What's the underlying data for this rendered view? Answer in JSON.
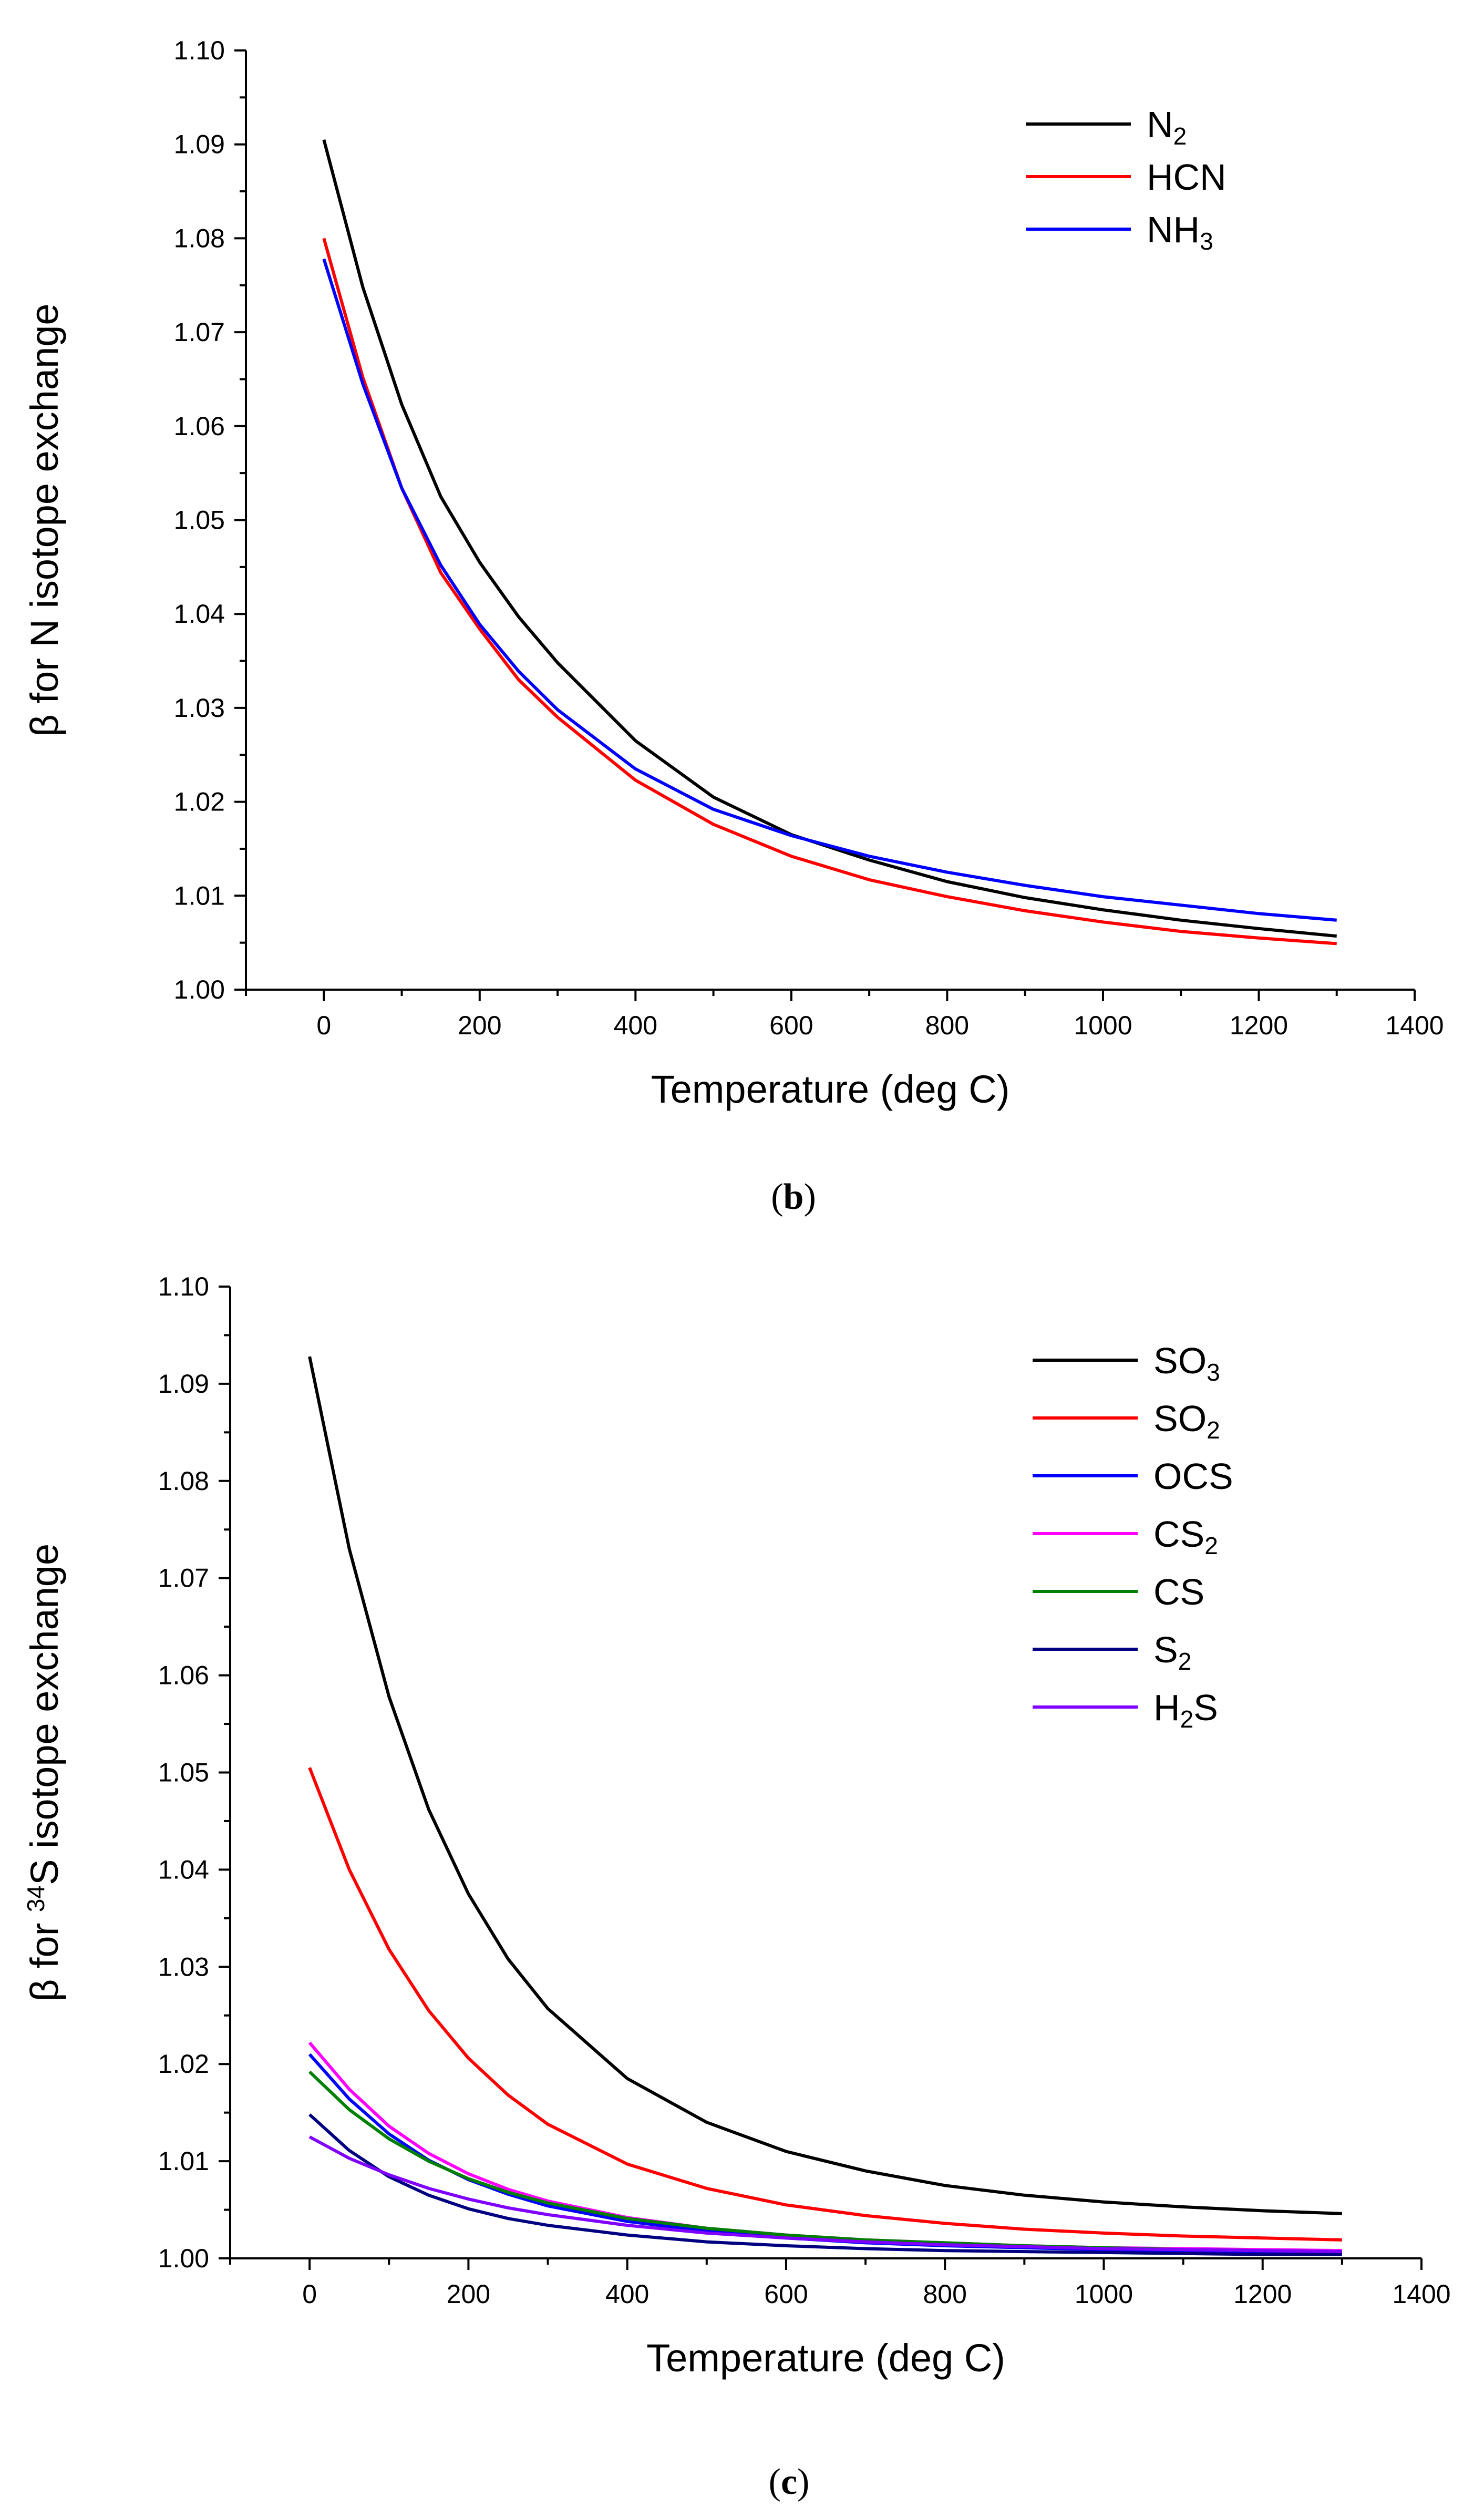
{
  "chart_data": [
    {
      "type": "line",
      "panel_label": "b",
      "caption_open": "(",
      "caption_close": ")",
      "xlabel": "Temperature (deg C)",
      "ylabel": "β for N isotope exchange",
      "xlim": [
        -100,
        1400
      ],
      "ylim": [
        1.0,
        1.1
      ],
      "x_ticks": [
        0,
        200,
        400,
        600,
        800,
        1000,
        1200,
        1400
      ],
      "y_ticks": [
        1.0,
        1.01,
        1.02,
        1.03,
        1.04,
        1.05,
        1.06,
        1.07,
        1.08,
        1.09,
        1.1
      ],
      "x_tick_labels": [
        "0",
        "200",
        "400",
        "600",
        "800",
        "1000",
        "1200",
        "1400"
      ],
      "y_tick_labels": [
        "1.00",
        "1.01",
        "1.02",
        "1.03",
        "1.04",
        "1.05",
        "1.06",
        "1.07",
        "1.08",
        "1.09",
        "1.10"
      ],
      "legend_position": "top-right",
      "x": [
        0,
        50,
        100,
        150,
        200,
        250,
        300,
        400,
        500,
        600,
        700,
        800,
        900,
        1000,
        1100,
        1200,
        1300
      ],
      "series": [
        {
          "name": "N2",
          "base": "N",
          "sub": "2",
          "sup": "",
          "tail": "",
          "color": "#000000",
          "values": [
            1.0905,
            1.0748,
            1.0623,
            1.0525,
            1.0455,
            1.0397,
            1.0348,
            1.0265,
            1.0205,
            1.0165,
            1.0138,
            1.0115,
            1.0098,
            1.0085,
            1.0074,
            1.0065,
            1.0057
          ]
        },
        {
          "name": "HCN",
          "base": "HCN",
          "sub": "",
          "sup": "",
          "tail": "",
          "color": "#ff0000",
          "values": [
            1.08,
            1.0652,
            1.0534,
            1.0444,
            1.0384,
            1.033,
            1.029,
            1.0223,
            1.0176,
            1.0142,
            1.0117,
            1.0099,
            1.0084,
            1.0072,
            1.0062,
            1.0055,
            1.0049
          ]
        },
        {
          "name": "NH3",
          "base": "NH",
          "sub": "3",
          "sup": "",
          "tail": "",
          "color": "#0000ff",
          "values": [
            1.0778,
            1.0645,
            1.0534,
            1.0452,
            1.0389,
            1.0339,
            1.0298,
            1.0235,
            1.0192,
            1.0164,
            1.0142,
            1.0125,
            1.0111,
            1.0099,
            1.009,
            1.0081,
            1.0074
          ]
        }
      ]
    },
    {
      "type": "line",
      "panel_label": "c",
      "caption_open": "(",
      "caption_close": ")",
      "xlabel": "Temperature (deg C)",
      "ylabel_pre": "β for ",
      "ylabel_sup": "34",
      "ylabel_post": "S isotope exchange",
      "xlim": [
        -100,
        1400
      ],
      "ylim": [
        1.0,
        1.1
      ],
      "x_ticks": [
        0,
        200,
        400,
        600,
        800,
        1000,
        1200,
        1400
      ],
      "y_ticks": [
        1.0,
        1.01,
        1.02,
        1.03,
        1.04,
        1.05,
        1.06,
        1.07,
        1.08,
        1.09,
        1.1
      ],
      "x_tick_labels": [
        "0",
        "200",
        "400",
        "600",
        "800",
        "1000",
        "1200",
        "1400"
      ],
      "y_tick_labels": [
        "1.00",
        "1.01",
        "1.02",
        "1.03",
        "1.04",
        "1.05",
        "1.06",
        "1.07",
        "1.08",
        "1.09",
        "1.10"
      ],
      "legend_position": "top-right",
      "x": [
        0,
        50,
        100,
        150,
        200,
        250,
        300,
        400,
        500,
        600,
        700,
        800,
        900,
        1000,
        1100,
        1200,
        1300
      ],
      "series": [
        {
          "name": "SO3",
          "base": "SO",
          "sub": "3",
          "sup": "",
          "tail": "",
          "color": "#000000",
          "values": [
            1.0928,
            1.073,
            1.0578,
            1.0462,
            1.0375,
            1.0308,
            1.0257,
            1.0185,
            1.014,
            1.011,
            1.009,
            1.0075,
            1.0065,
            1.0058,
            1.0053,
            1.0049,
            1.0046
          ]
        },
        {
          "name": "SO2",
          "base": "SO",
          "sub": "2",
          "sup": "",
          "tail": "",
          "color": "#ff0000",
          "values": [
            1.0505,
            1.04,
            1.0318,
            1.0255,
            1.0206,
            1.0168,
            1.0138,
            1.0097,
            1.0072,
            1.0055,
            1.0044,
            1.0036,
            1.003,
            1.0026,
            1.0023,
            1.0021,
            1.0019
          ]
        },
        {
          "name": "OCS",
          "base": "OCS",
          "sub": "",
          "sup": "",
          "tail": "",
          "color": "#0000ff",
          "values": [
            1.021,
            1.0164,
            1.0128,
            1.0101,
            1.0081,
            1.0066,
            1.0054,
            1.0038,
            1.0028,
            1.0021,
            1.0016,
            1.0013,
            1.0011,
            1.0009,
            1.0008,
            1.0007,
            1.0006
          ]
        },
        {
          "name": "CS2",
          "base": "CS",
          "sub": "2",
          "sup": "",
          "tail": "",
          "color": "#ff00ff",
          "values": [
            1.0222,
            1.0174,
            1.0136,
            1.0108,
            1.0087,
            1.0071,
            1.0059,
            1.0042,
            1.0031,
            1.0024,
            1.0019,
            1.0016,
            1.0013,
            1.0011,
            1.001,
            1.0009,
            1.0008
          ]
        },
        {
          "name": "CS",
          "base": "CS",
          "sub": "",
          "sup": "",
          "tail": "",
          "color": "#008000",
          "values": [
            1.0192,
            1.0153,
            1.0123,
            1.01,
            1.0082,
            1.0068,
            1.0057,
            1.0041,
            1.0031,
            1.0024,
            1.0019,
            1.0016,
            1.0013,
            1.0011,
            1.0009,
            1.0008,
            1.0007
          ]
        },
        {
          "name": "S2",
          "base": "S",
          "sub": "2",
          "sup": "",
          "tail": "",
          "color": "#000080",
          "values": [
            1.0148,
            1.0111,
            1.0084,
            1.0065,
            1.0051,
            1.0041,
            1.0034,
            1.0024,
            1.0017,
            1.0013,
            1.001,
            1.0008,
            1.0007,
            1.0006,
            1.0005,
            1.0004,
            1.0004
          ]
        },
        {
          "name": "H2S",
          "base": "H",
          "sub": "2",
          "sup": "",
          "tail": "S",
          "color": "#8000ff",
          "values": [
            1.0125,
            1.0103,
            1.0086,
            1.0072,
            1.0061,
            1.0052,
            1.0045,
            1.0034,
            1.0026,
            1.0021,
            1.0017,
            1.0014,
            1.0012,
            1.001,
            1.0009,
            1.0008,
            1.0007
          ]
        }
      ]
    }
  ]
}
